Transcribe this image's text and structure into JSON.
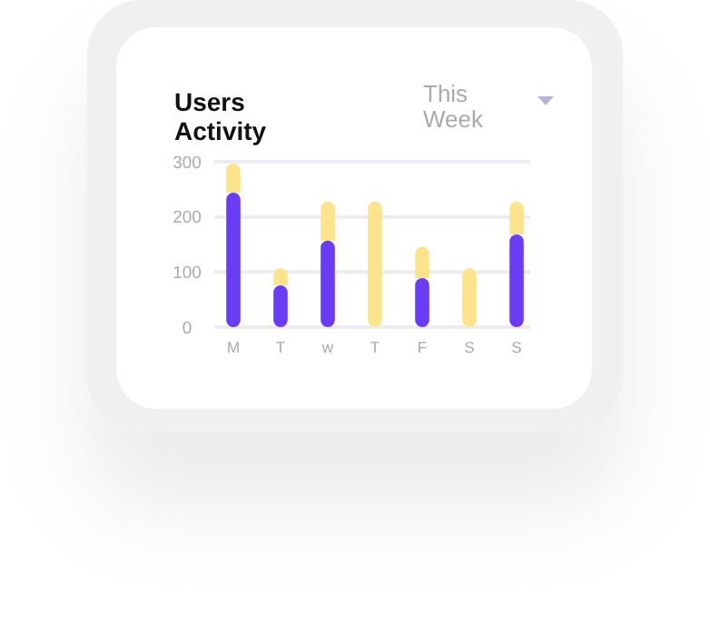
{
  "chart_data": {
    "type": "bar",
    "title": "Users Activity",
    "subtitle": "This Week",
    "categories": [
      "M",
      "T",
      "w",
      "T",
      "F",
      "S",
      "S"
    ],
    "series": [
      {
        "color": "#6a3df5",
        "values": [
          244,
          76,
          157,
          null,
          89,
          null,
          168
        ]
      },
      {
        "color": "#fde48c",
        "values": [
          53,
          31,
          71,
          228,
          57,
          107,
          60
        ]
      }
    ],
    "stacked": true,
    "ylim": [
      0,
      300
    ],
    "yticks": [
      0,
      100,
      200,
      300
    ],
    "grid": "y"
  }
}
